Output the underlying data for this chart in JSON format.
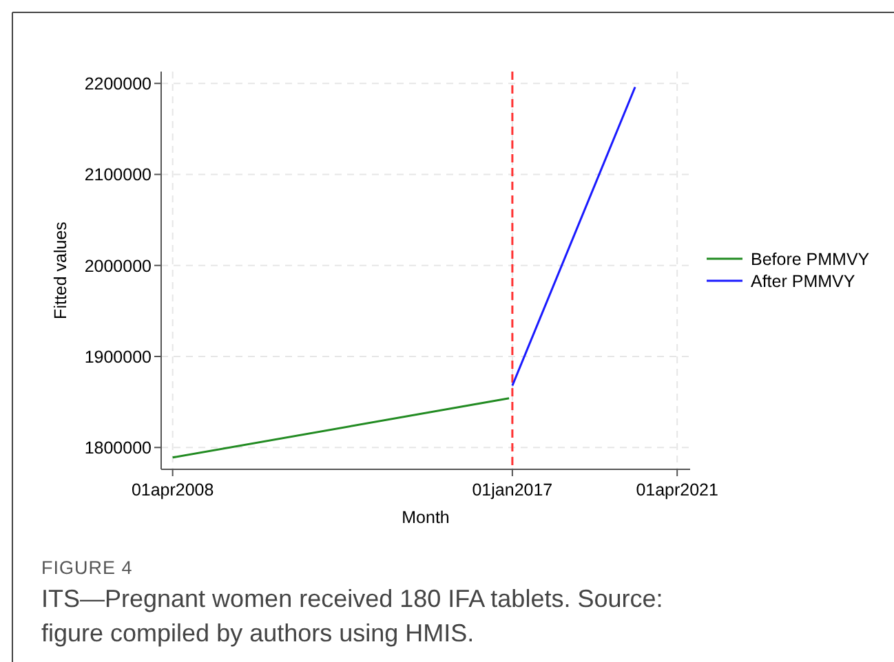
{
  "chart_data": {
    "type": "line",
    "xlabel": "Month",
    "ylabel": "Fitted values",
    "xlim": [
      "2007-12-15",
      "2021-08-01"
    ],
    "ylim": [
      1776000,
      2213000
    ],
    "xticks": [
      {
        "value": "2008-04-01",
        "label": "01apr2008"
      },
      {
        "value": "2017-01-01",
        "label": "01jan2017"
      },
      {
        "value": "2021-04-01",
        "label": "01apr2021"
      }
    ],
    "yticks": [
      1800000,
      1900000,
      2000000,
      2100000,
      2200000
    ],
    "series": [
      {
        "name": "Before PMMVY",
        "color": "#228b22",
        "x": [
          "2008-04",
          "2016-12"
        ],
        "values": [
          1789000,
          1854000
        ]
      },
      {
        "name": "After PMMVY",
        "color": "#1a1aff",
        "x": [
          "2017-01",
          "2020-03"
        ],
        "values": [
          1868000,
          2196000
        ]
      }
    ],
    "ref_lines": [
      {
        "axis": "x",
        "value": "2017-01-01",
        "color": "#ff3333",
        "line_style": "dashed"
      }
    ],
    "grid": true,
    "legend": "right",
    "line_style": "solid",
    "annotations": [
      "FIGURE 4",
      "ITS—Pregnant women received 180 IFA tablets. Source: figure compiled by authors using HMIS."
    ]
  }
}
